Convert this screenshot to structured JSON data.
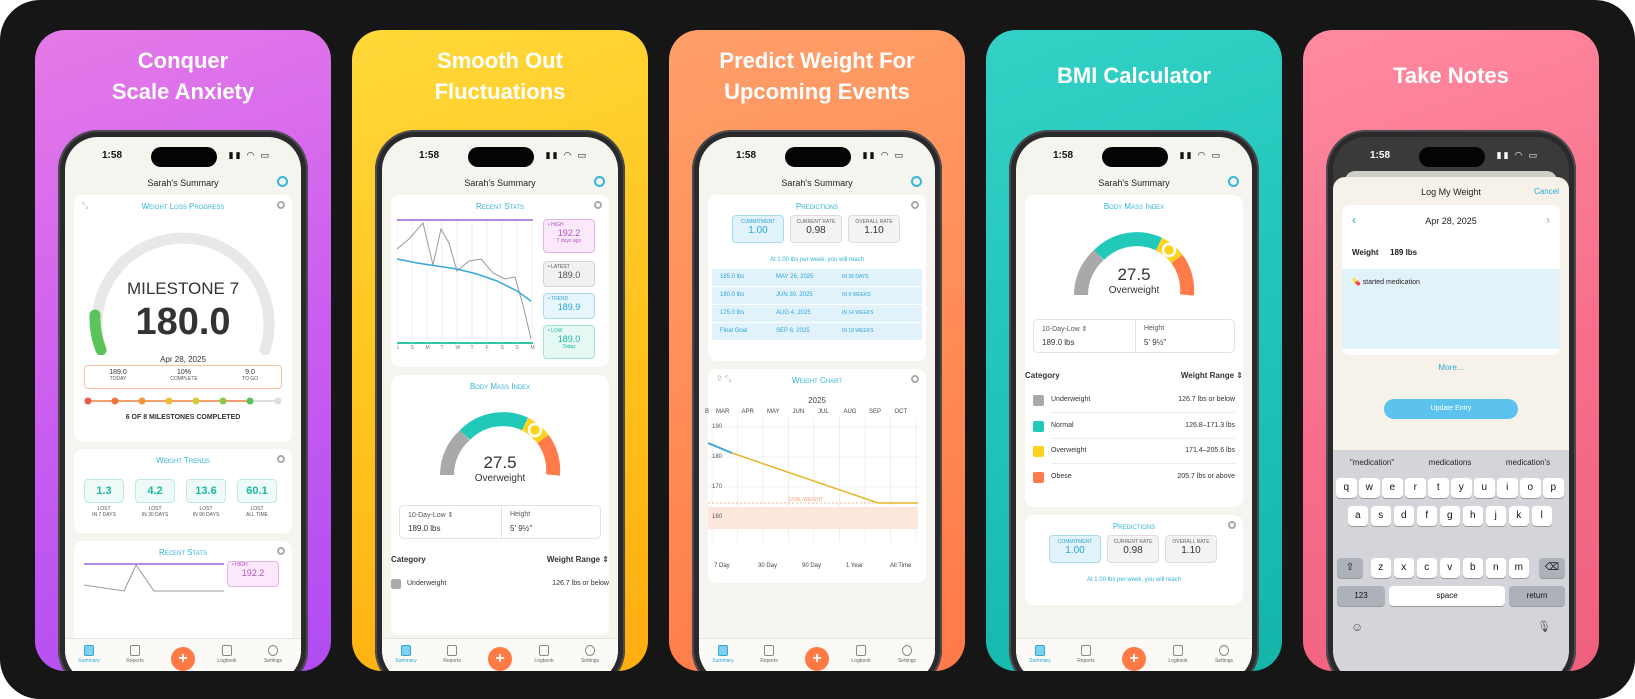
{
  "panels": [
    {
      "caption_line1": "Conquer",
      "caption_line2": "Scale Anxiety"
    },
    {
      "caption_line1": "Smooth Out",
      "caption_line2": "Fluctuations"
    },
    {
      "caption_line1": "Predict Weight For",
      "caption_line2": "Upcoming Events"
    },
    {
      "caption_line1": "BMI Calculator"
    },
    {
      "caption_line1": "Take Notes"
    }
  ],
  "status": {
    "time": "1:58",
    "icons": "▮▮ ◠ ▭"
  },
  "nav_title": "Sarah's Summary",
  "tabs": [
    "Summary",
    "Reports",
    "Logbook",
    "Settings"
  ],
  "colors": {
    "accent": "#34b3da",
    "plus": "#ff7a45",
    "normal": "#21c9b8",
    "over": "#ffd21c",
    "obese": "#ff7c4a",
    "under": "#a9a9a9"
  },
  "s1": {
    "card_title": "Weight Loss Progress",
    "milestone": "MILESTONE 7",
    "weight": "180.0",
    "date": "Apr 28, 2025",
    "stats": [
      {
        "v": "189.0",
        "l": "TODAY"
      },
      {
        "v": "10%",
        "l": "COMPLETE"
      },
      {
        "v": "9.0",
        "l": "TO GO"
      }
    ],
    "milestones_text": "6 OF 8 MILESTONES COMPLETED",
    "trends_title": "Weight Trends",
    "trends": [
      {
        "v": "1.3",
        "l1": "LOST",
        "l2": "IN 7 DAYS"
      },
      {
        "v": "4.2",
        "l1": "LOST",
        "l2": "IN 30 DAYS"
      },
      {
        "v": "13.6",
        "l1": "LOST",
        "l2": "IN 90 DAYS"
      },
      {
        "v": "60.1",
        "l1": "LOST",
        "l2": "ALL TIME"
      }
    ],
    "recent_title": "Recent Stats",
    "recent_high_label": "• HIGH",
    "recent_high": "192.2"
  },
  "s2": {
    "card_title": "Recent Stats",
    "badges": [
      {
        "label": "• HIGH",
        "value": "192.2",
        "sub": "7 days ago"
      },
      {
        "label": "• LATEST",
        "value": "189.0",
        "sub": ""
      },
      {
        "label": "• TREND",
        "value": "189.9",
        "sub": ""
      },
      {
        "label": "• LOW",
        "value": "189.0",
        "sub": "Today"
      }
    ],
    "days": [
      "S",
      "S",
      "M",
      "T",
      "W",
      "T",
      "F",
      "S",
      "S",
      "M"
    ],
    "bmi_title": "Body Mass Index",
    "bmi": "27.5",
    "bmi_label": "Overweight",
    "low_label": "10-Day-Low ⇕",
    "low_value": "189.0 lbs",
    "height_label": "Height",
    "height_value": "5' 9½\"",
    "cat_header": "Category",
    "range_header": "Weight Range ⇕",
    "row_cat": "Underweight",
    "row_range": "126.7 lbs or below"
  },
  "s3": {
    "card_title": "Predictions",
    "boxes": [
      {
        "l": "COMMITMENT",
        "v": "1.00"
      },
      {
        "l": "CURRENT RATE",
        "v": "0.98"
      },
      {
        "l": "OVERALL RATE",
        "v": "1.10"
      }
    ],
    "rate_text": "At 1.00 lbs per week, you will reach",
    "rows": [
      {
        "a": "185.0 lbs",
        "b": "MAY 26, 2025",
        "c": "IN 28 DAYS"
      },
      {
        "a": "180.0 lbs",
        "b": "JUN 30, 2025",
        "c": "IN 9 WEEKS"
      },
      {
        "a": "175.0 lbs",
        "b": "AUG 4, 2025",
        "c": "IN 14 WEEKS"
      },
      {
        "a": "Final Goal",
        "b": "SEP 8, 2025",
        "c": "IN 19 WEEKS"
      }
    ],
    "chart_title": "Weight Chart",
    "year": "2025",
    "months": [
      "MAR",
      "APR",
      "MAY",
      "JUN",
      "JUL",
      "AUG",
      "SEP",
      "OCT"
    ],
    "month_prefix": "B",
    "yticks": [
      "190",
      "180",
      "170",
      "160"
    ],
    "goal_label": "GOAL WEIGHT",
    "ranges": [
      "7 Day",
      "30 Day",
      "90 Day",
      "1 Year",
      "All Time"
    ]
  },
  "s4": {
    "card_title": "Body Mass Index",
    "bmi": "27.5",
    "bmi_label": "Overweight",
    "low_label": "10-Day-Low ⇕",
    "low_value": "189.0 lbs",
    "height_label": "Height",
    "height_value": "5' 9½\"",
    "cat_header": "Category",
    "range_header": "Weight Range ⇕",
    "rows": [
      {
        "cat": "Underweight",
        "range": "126.7 lbs or below"
      },
      {
        "cat": "Normal",
        "range": "126.8–171.3 lbs"
      },
      {
        "cat": "Overweight",
        "range": "171.4–205.6 lbs"
      },
      {
        "cat": "Obese",
        "range": "205.7 lbs or above"
      }
    ],
    "pred_title": "Predictions",
    "boxes": [
      {
        "l": "COMMITMENT",
        "v": "1.00"
      },
      {
        "l": "CURRENT RATE",
        "v": "0.98"
      },
      {
        "l": "OVERALL RATE",
        "v": "1.10"
      }
    ],
    "rate_text": "At 1.00 lbs per week, you will reach"
  },
  "s5": {
    "sheet_title": "Log My Weight",
    "cancel": "Cancel",
    "date": "Apr 28, 2025",
    "weight_label": "Weight",
    "weight_value": "189 lbs",
    "note": "💊 started medication",
    "more": "More...",
    "update": "Update Entry",
    "suggestions": [
      "\"medication\"",
      "medications",
      "medication's"
    ],
    "row1": [
      "q",
      "w",
      "e",
      "r",
      "t",
      "y",
      "u",
      "i",
      "o",
      "p"
    ],
    "row2": [
      "a",
      "s",
      "d",
      "f",
      "g",
      "h",
      "j",
      "k",
      "l"
    ],
    "row3": [
      "z",
      "x",
      "c",
      "v",
      "b",
      "n",
      "m"
    ],
    "num_key": "123",
    "space_key": "space",
    "return_key": "return"
  }
}
